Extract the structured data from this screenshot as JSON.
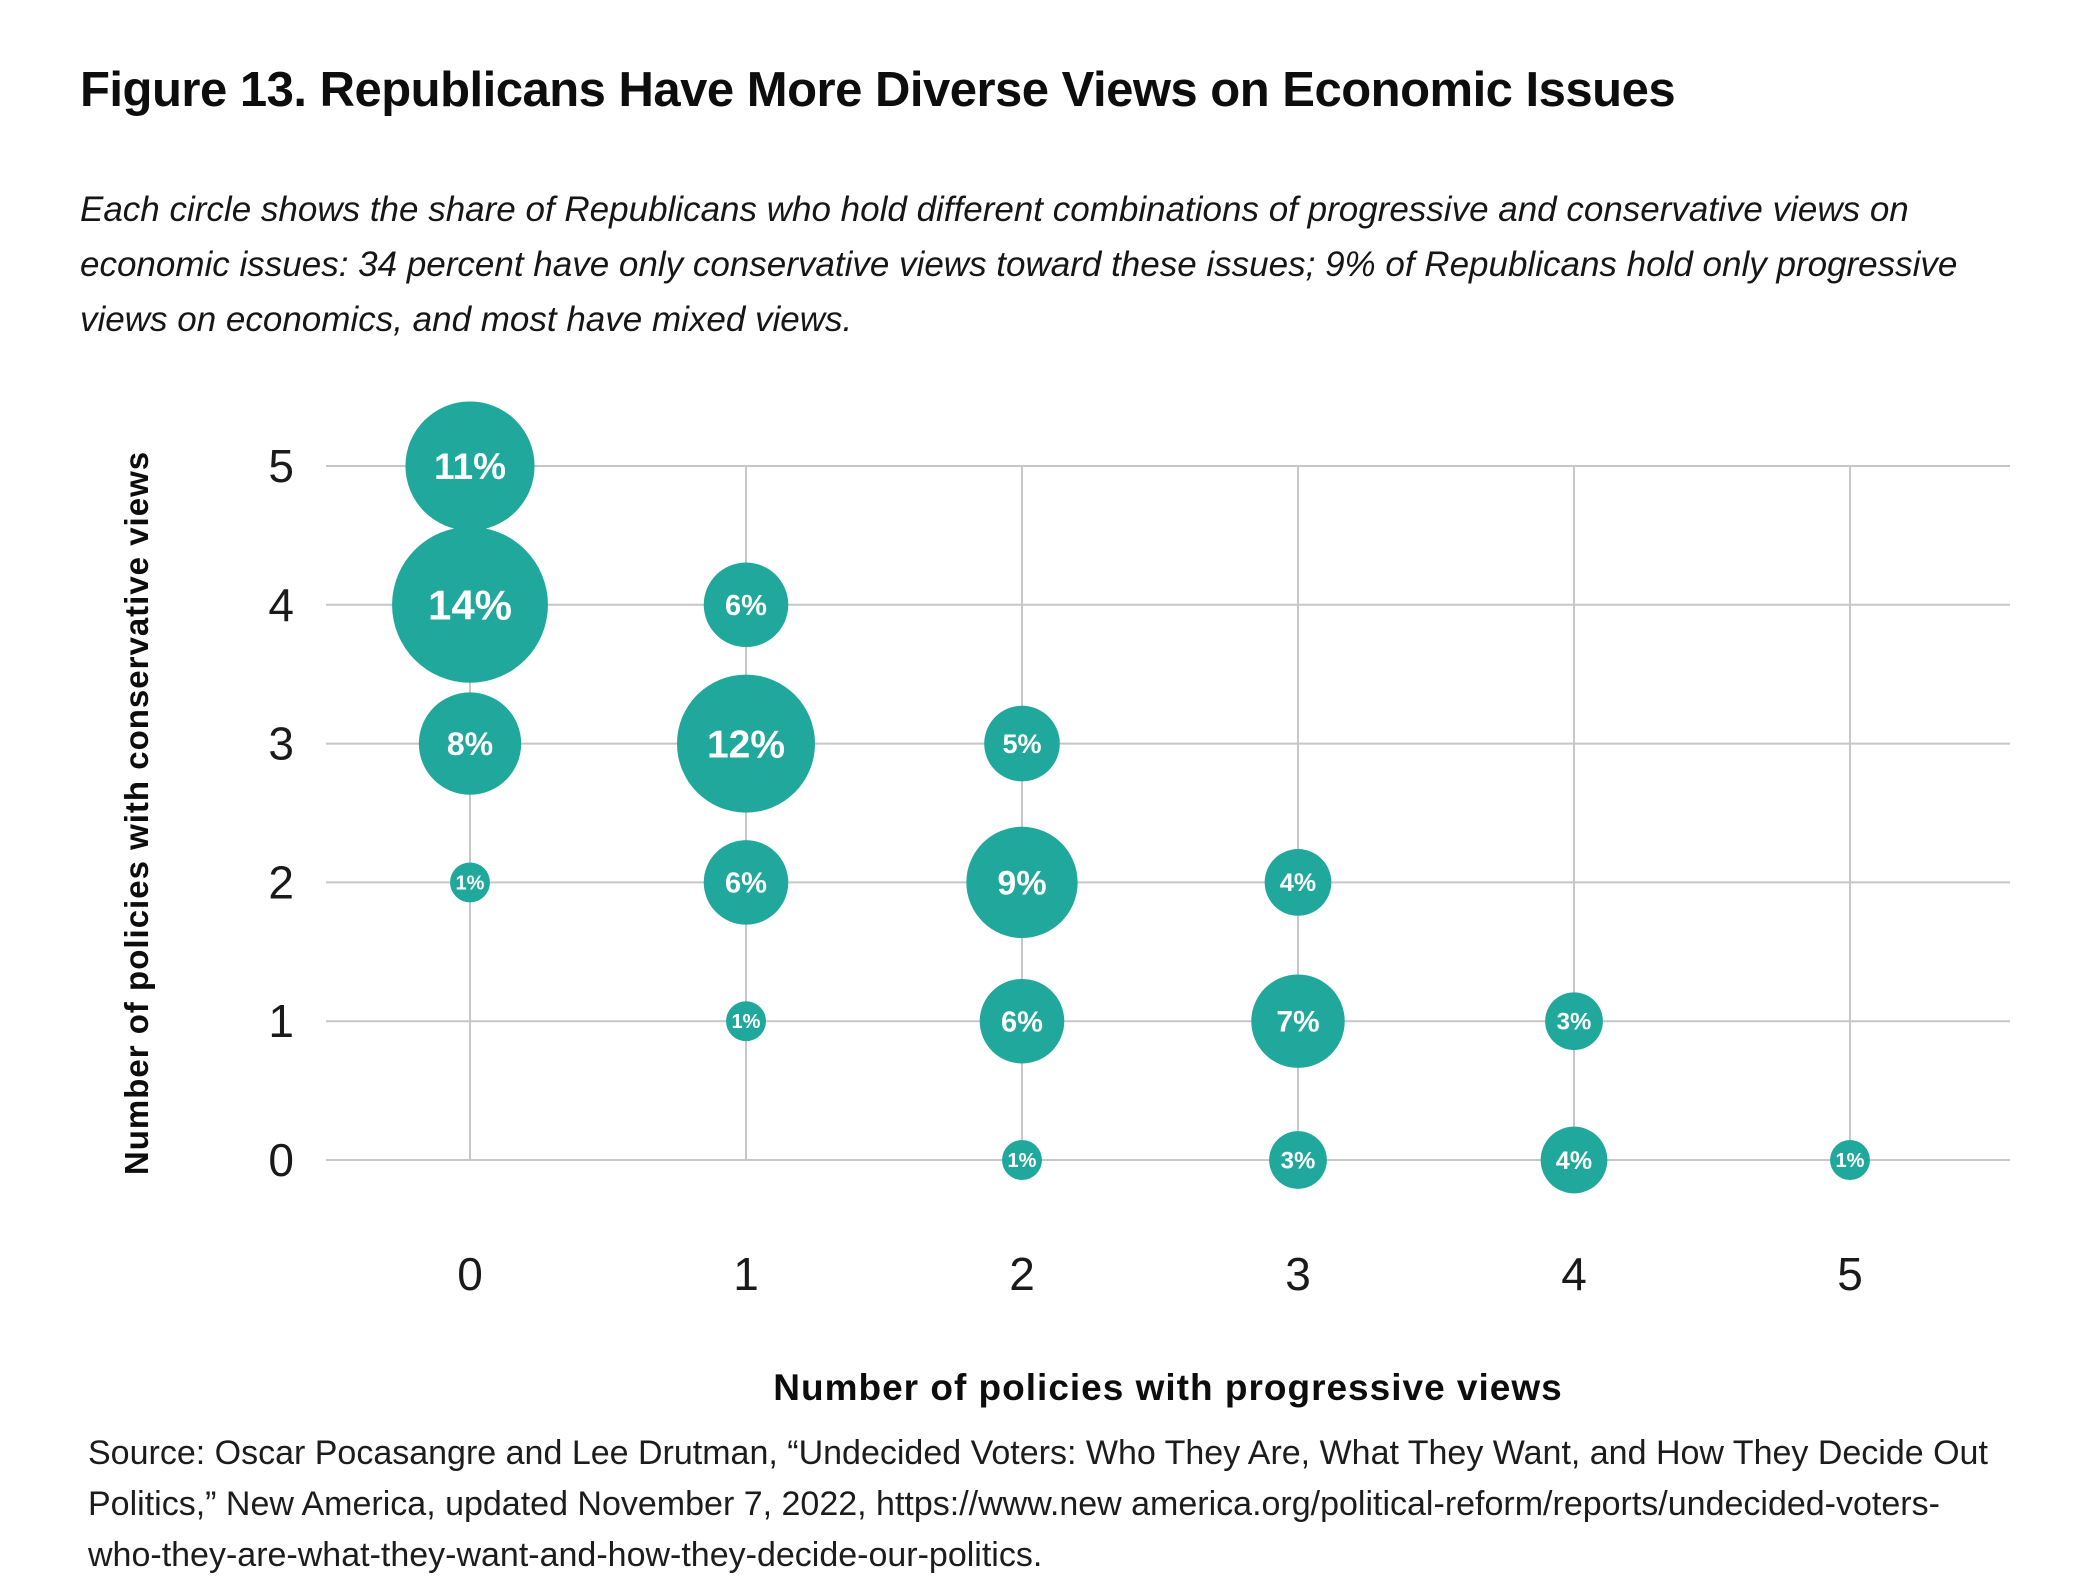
{
  "page": {
    "title": "Figure 13. Republicans Have More Diverse Views on Economic Issues",
    "subtitle": "Each circle shows the share of Republicans who hold different combinations of progressive and conservative views on economic issues: 34 percent have only conservative views toward these issues; 9% of Republicans hold only progressive views on economics, and most have mixed views.",
    "source": "Source: Oscar Pocasangre and Lee Drutman, “Undecided Voters: Who They Are, What They Want, and How They Decide Out Politics,” New America, updated November 7, 2022, https://www.new america.org/political-reform/reports/undecided-voters-who-they-are-what-they-want-and-how-they-decide-our-politics."
  },
  "chart_data": {
    "type": "scatter",
    "subtype": "bubble",
    "title": "",
    "xlabel": "Number of policies with progressive views",
    "ylabel": "Number of policies with conservative views",
    "x_ticks": [
      0,
      1,
      2,
      3,
      4,
      5
    ],
    "y_ticks": [
      0,
      1,
      2,
      3,
      4,
      5
    ],
    "xlim": [
      -0.5,
      5.6
    ],
    "ylim": [
      -0.2,
      5.5
    ],
    "grid": true,
    "legend": false,
    "value_unit": "percent of Republicans",
    "colors": {
      "bubble": "#20A89D",
      "bubble_label": "#FFFFFF",
      "gridline": "#C7C7C7",
      "tick_text": "#1A1A1A"
    },
    "points": [
      {
        "x": 0,
        "y": 5,
        "value": 11,
        "label": "11%"
      },
      {
        "x": 0,
        "y": 4,
        "value": 14,
        "label": "14%"
      },
      {
        "x": 0,
        "y": 3,
        "value": 8,
        "label": "8%"
      },
      {
        "x": 0,
        "y": 2,
        "value": 1,
        "label": "1%"
      },
      {
        "x": 1,
        "y": 4,
        "value": 6,
        "label": "6%"
      },
      {
        "x": 1,
        "y": 3,
        "value": 12,
        "label": "12%"
      },
      {
        "x": 1,
        "y": 2,
        "value": 6,
        "label": "6%"
      },
      {
        "x": 1,
        "y": 1,
        "value": 1,
        "label": "1%"
      },
      {
        "x": 2,
        "y": 3,
        "value": 5,
        "label": "5%"
      },
      {
        "x": 2,
        "y": 2,
        "value": 9,
        "label": "9%"
      },
      {
        "x": 2,
        "y": 1,
        "value": 6,
        "label": "6%"
      },
      {
        "x": 2,
        "y": 0,
        "value": 1,
        "label": "1%"
      },
      {
        "x": 3,
        "y": 2,
        "value": 4,
        "label": "4%"
      },
      {
        "x": 3,
        "y": 1,
        "value": 7,
        "label": "7%"
      },
      {
        "x": 3,
        "y": 0,
        "value": 3,
        "label": "3%"
      },
      {
        "x": 4,
        "y": 1,
        "value": 3,
        "label": "3%"
      },
      {
        "x": 4,
        "y": 0,
        "value": 4,
        "label": "4%"
      },
      {
        "x": 5,
        "y": 0,
        "value": 1,
        "label": "1%"
      }
    ]
  }
}
